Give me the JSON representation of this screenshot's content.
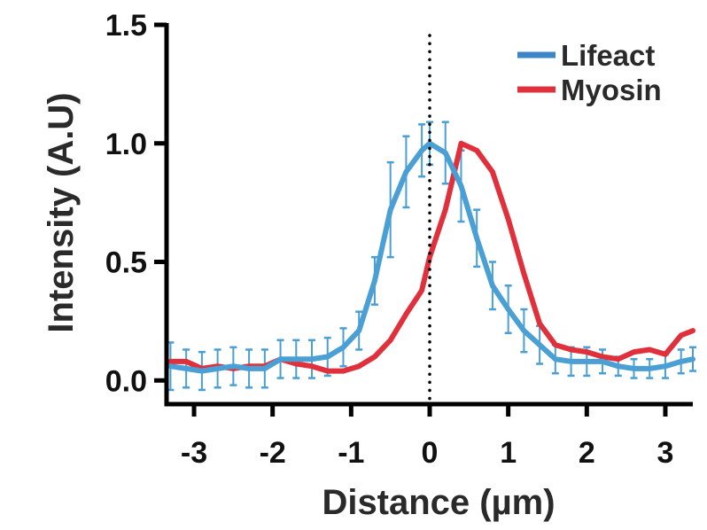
{
  "chart_data": {
    "type": "line",
    "xlabel": "Distance (µm)",
    "ylabel": "Intensity (A.U)",
    "xlim": [
      -3.35,
      3.35
    ],
    "ylim": [
      -0.1,
      1.5
    ],
    "xticks": [
      -3,
      -2,
      -1,
      0,
      1,
      2,
      3
    ],
    "xtick_labels": [
      "-3",
      "-2",
      "-1",
      "0",
      "1",
      "2",
      "3"
    ],
    "yticks": [
      0.0,
      0.5,
      1.0,
      1.5
    ],
    "ytick_labels": [
      "0.0",
      "0.5",
      "1.0",
      "1.5"
    ],
    "reference_line": {
      "x": 0,
      "style": "dotted"
    },
    "legend_position": "top-right",
    "grid": false,
    "series": [
      {
        "name": "Lifeact",
        "color": "#4a9fd4",
        "legend_color": "#3d85c6",
        "x": [
          -3.3,
          -3.1,
          -2.9,
          -2.7,
          -2.5,
          -2.3,
          -2.1,
          -1.9,
          -1.7,
          -1.5,
          -1.3,
          -1.1,
          -0.9,
          -0.7,
          -0.5,
          -0.3,
          -0.1,
          0.0,
          0.2,
          0.4,
          0.6,
          0.8,
          1.0,
          1.2,
          1.4,
          1.6,
          1.8,
          2.0,
          2.2,
          2.4,
          2.6,
          2.8,
          3.0,
          3.2,
          3.35
        ],
        "y": [
          0.06,
          0.05,
          0.04,
          0.05,
          0.06,
          0.05,
          0.05,
          0.09,
          0.09,
          0.09,
          0.1,
          0.14,
          0.21,
          0.42,
          0.72,
          0.88,
          0.97,
          1.0,
          0.96,
          0.82,
          0.6,
          0.4,
          0.3,
          0.21,
          0.15,
          0.09,
          0.08,
          0.08,
          0.08,
          0.06,
          0.05,
          0.05,
          0.06,
          0.08,
          0.09
        ],
        "err": [
          0.1,
          0.08,
          0.08,
          0.08,
          0.08,
          0.08,
          0.08,
          0.08,
          0.08,
          0.08,
          0.08,
          0.08,
          0.08,
          0.1,
          0.2,
          0.15,
          0.11,
          0.09,
          0.13,
          0.15,
          0.12,
          0.1,
          0.1,
          0.09,
          0.08,
          0.06,
          0.06,
          0.06,
          0.05,
          0.04,
          0.04,
          0.04,
          0.05,
          0.05,
          0.05
        ]
      },
      {
        "name": "Myosin",
        "color": "#e0303b",
        "legend_color": "#e0303b",
        "x": [
          -3.3,
          -3.1,
          -2.9,
          -2.7,
          -2.5,
          -2.3,
          -2.1,
          -1.9,
          -1.7,
          -1.5,
          -1.3,
          -1.1,
          -0.9,
          -0.7,
          -0.5,
          -0.3,
          -0.1,
          0.0,
          0.2,
          0.4,
          0.6,
          0.8,
          1.0,
          1.2,
          1.4,
          1.6,
          1.8,
          2.0,
          2.2,
          2.4,
          2.6,
          2.8,
          3.0,
          3.2,
          3.35
        ],
        "y": [
          0.08,
          0.08,
          0.05,
          0.06,
          0.05,
          0.06,
          0.06,
          0.09,
          0.07,
          0.06,
          0.04,
          0.04,
          0.06,
          0.1,
          0.17,
          0.28,
          0.38,
          0.52,
          0.72,
          1.0,
          0.97,
          0.88,
          0.68,
          0.45,
          0.24,
          0.15,
          0.13,
          0.12,
          0.1,
          0.09,
          0.12,
          0.13,
          0.11,
          0.19,
          0.21
        ]
      }
    ]
  }
}
